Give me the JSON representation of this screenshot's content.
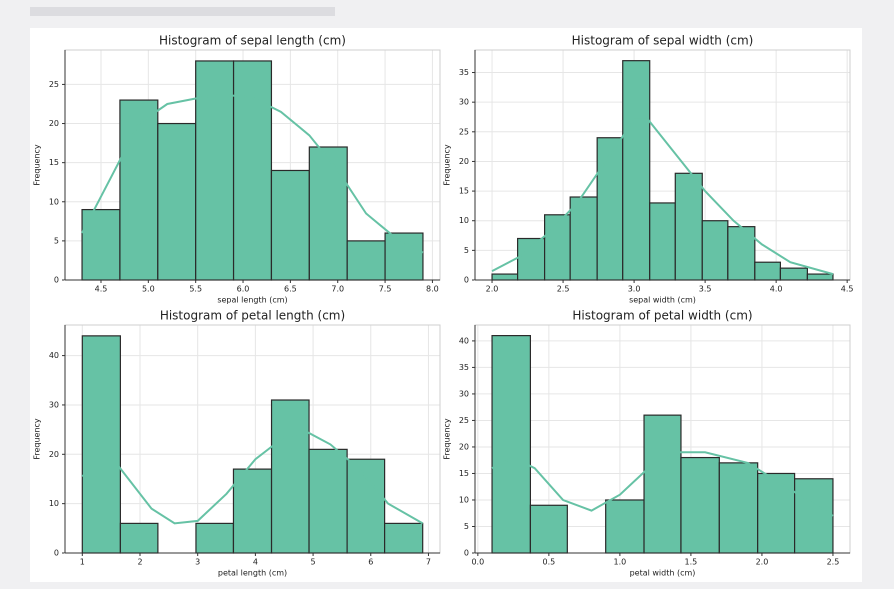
{
  "chart_data": [
    {
      "type": "histogram",
      "title": "Histogram of sepal length (cm)",
      "x_label": "sepal length (cm)",
      "y_label": "Frequency",
      "bins": [
        4.3,
        4.7,
        5.1,
        5.5,
        5.9,
        6.3,
        6.7,
        7.1,
        7.5,
        7.9
      ],
      "values": [
        9,
        23,
        20,
        28,
        28,
        14,
        17,
        5,
        6
      ],
      "kde": {
        "x": [
          4.3,
          4.6,
          4.9,
          5.2,
          5.5,
          5.8,
          6.1,
          6.4,
          6.7,
          7.0,
          7.3,
          7.6,
          7.9
        ],
        "y": [
          6,
          13,
          20,
          22.5,
          23.2,
          23.7,
          23.3,
          21.5,
          18.5,
          14,
          8.5,
          5.5,
          3.5
        ]
      },
      "xlim": [
        4.12,
        8.08
      ],
      "xticks": [
        {
          "value": 4.5,
          "label": "4.5"
        },
        {
          "value": 5,
          "label": "5.0"
        },
        {
          "value": 5.5,
          "label": "5.5"
        },
        {
          "value": 6,
          "label": "6.0"
        },
        {
          "value": 6.5,
          "label": "6.5"
        },
        {
          "value": 7,
          "label": "7.0"
        },
        {
          "value": 7.5,
          "label": "7.5"
        },
        {
          "value": 8,
          "label": "8.0"
        }
      ],
      "ylim": [
        0,
        29.4
      ],
      "yticks": [
        0,
        5,
        10,
        15,
        20,
        25
      ],
      "color": "#66c2a5",
      "grid": true
    },
    {
      "type": "histogram",
      "title": "Histogram of sepal width (cm)",
      "x_label": "sepal width (cm)",
      "y_label": "Frequency",
      "bins": [
        2.0,
        2.18,
        2.37,
        2.55,
        2.74,
        2.92,
        3.11,
        3.29,
        3.48,
        3.66,
        3.85,
        4.03,
        4.22,
        4.4
      ],
      "values": [
        1,
        7,
        11,
        14,
        24,
        37,
        13,
        18,
        10,
        9,
        3,
        2,
        1
      ],
      "kde": {
        "x": [
          2.0,
          2.2,
          2.4,
          2.6,
          2.8,
          3.0,
          3.1,
          3.3,
          3.5,
          3.7,
          3.9,
          4.1,
          4.4
        ],
        "y": [
          1.5,
          4,
          8,
          13,
          20,
          27,
          27,
          21,
          15,
          10,
          6,
          3,
          1
        ]
      },
      "xlim": [
        1.88,
        4.52
      ],
      "xticks": [
        {
          "value": 2,
          "label": "2.0"
        },
        2.5,
        {
          "value": 3,
          "label": "3.0"
        },
        3.5,
        {
          "value": 4,
          "label": "4.0"
        },
        4.5
      ],
      "ylim": [
        0,
        38.8
      ],
      "yticks": [
        0,
        5,
        10,
        15,
        20,
        25,
        30,
        35
      ],
      "color": "#66c2a5",
      "grid": true
    },
    {
      "type": "histogram",
      "title": "Histogram of petal length (cm)",
      "x_label": "petal length (cm)",
      "y_label": "Frequency",
      "bins": [
        1.0,
        1.66,
        2.31,
        2.97,
        3.62,
        4.28,
        4.93,
        5.59,
        6.24,
        6.9
      ],
      "values": [
        44,
        6,
        0,
        6,
        17,
        31,
        21,
        19,
        6
      ],
      "kde": {
        "x": [
          1.0,
          1.3,
          1.5,
          1.8,
          2.2,
          2.6,
          3.0,
          3.5,
          4.0,
          4.5,
          4.9,
          5.3,
          5.8,
          6.3,
          6.9
        ],
        "y": [
          15.5,
          19.5,
          19.5,
          15,
          9,
          6,
          6.5,
          12,
          19,
          23.5,
          24.5,
          22,
          17,
          10,
          6
        ]
      },
      "xlim": [
        0.7,
        7.2
      ],
      "xticks": [
        1,
        2,
        3,
        4,
        5,
        6,
        7
      ],
      "ylim": [
        0,
        46.2
      ],
      "yticks": [
        0,
        10,
        20,
        30,
        40
      ],
      "color": "#66c2a5",
      "grid": true
    },
    {
      "type": "histogram",
      "title": "Histogram of petal width (cm)",
      "x_label": "petal width (cm)",
      "y_label": "Frequency",
      "bins": [
        0.1,
        0.37,
        0.63,
        0.9,
        1.17,
        1.43,
        1.7,
        1.97,
        2.23,
        2.5
      ],
      "values": [
        41,
        9,
        0,
        10,
        26,
        18,
        17,
        15,
        14
      ],
      "kde": {
        "x": [
          0.1,
          0.25,
          0.4,
          0.6,
          0.8,
          1.0,
          1.2,
          1.4,
          1.6,
          1.9,
          2.2,
          2.5
        ],
        "y": [
          16,
          18,
          16,
          10,
          8,
          11,
          16,
          19,
          19,
          17,
          12,
          7
        ]
      },
      "xlim": [
        -0.02,
        2.62
      ],
      "xticks": [
        {
          "value": 0,
          "label": "0.0"
        },
        0.5,
        {
          "value": 1,
          "label": "1.0"
        },
        1.5,
        {
          "value": 2,
          "label": "2.0"
        },
        2.5
      ],
      "ylim": [
        0,
        43
      ],
      "yticks": [
        0,
        5,
        10,
        15,
        20,
        25,
        30,
        35,
        40
      ],
      "color": "#66c2a5",
      "grid": true
    }
  ]
}
